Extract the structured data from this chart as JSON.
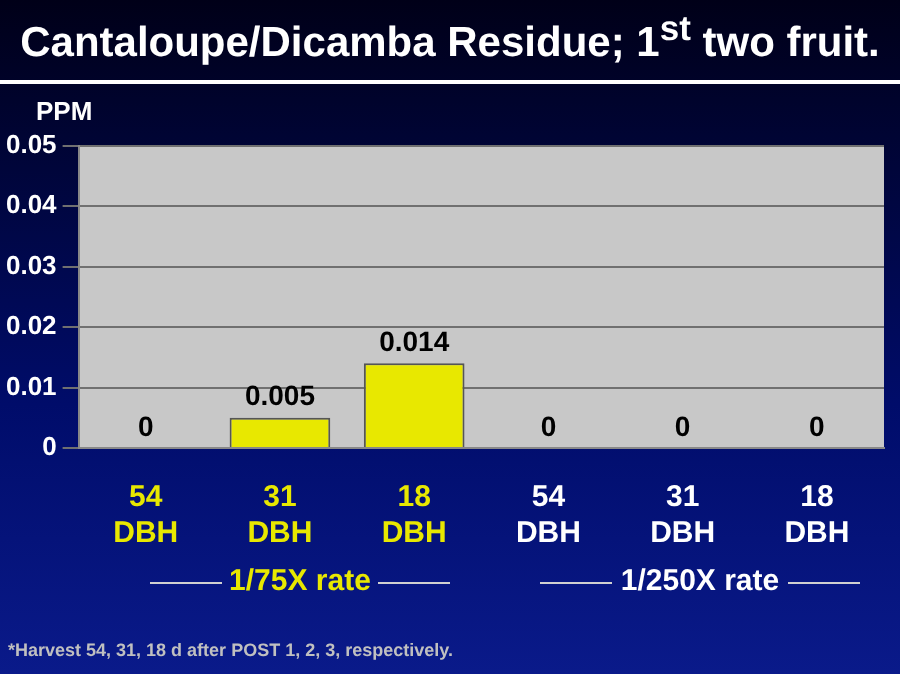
{
  "chart_data": {
    "type": "bar",
    "title": "Cantaloupe/Dicamba Residue; 1$^{st}$ two fruit.",
    "ylabel": "PPM",
    "categories": [
      "54 DBH",
      "31 DBH",
      "18 DBH",
      "54 DBH",
      "31 DBH",
      "18 DBH"
    ],
    "values": [
      0,
      0.005,
      0.014,
      0,
      0,
      0
    ],
    "colors": [
      "#e8e800",
      "#e8e800",
      "#e8e800",
      "#a0a0a0",
      "#a0a0a0",
      "#a0a0a0"
    ],
    "ylim": [
      0,
      0.05
    ],
    "yticks": [
      0,
      0.01,
      0.02,
      0.03,
      0.04,
      0.05
    ],
    "grid": "y",
    "data_labels": true,
    "legend": false,
    "annotations": [
      "1/75X rate",
      "1/250X rate",
      "*Harvest 54, 31, 18 d after POST 1, 2, 3, respectively."
    ]
  }
}
